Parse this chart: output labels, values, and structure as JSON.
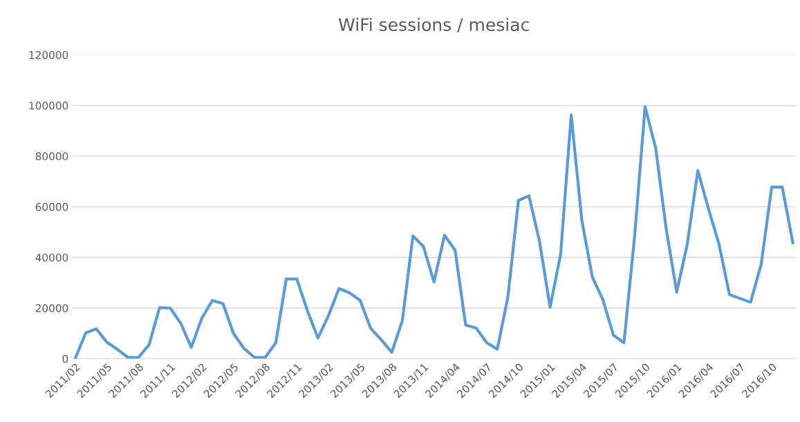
{
  "chart_data": {
    "type": "line",
    "title": "WiFi sessions / mesiac",
    "categories": [
      "2011/02",
      null,
      null,
      "2011/05",
      null,
      null,
      "2011/08",
      null,
      null,
      "2011/11",
      null,
      null,
      "2012/02",
      null,
      null,
      "2012/05",
      null,
      null,
      "2012/08",
      null,
      null,
      "2012/11",
      null,
      null,
      "2013/02",
      null,
      null,
      "2013/05",
      null,
      null,
      "2013/08",
      null,
      null,
      "2013/11",
      null,
      null,
      "2014/04",
      null,
      null,
      "2014/07",
      null,
      null,
      "2014/10",
      null,
      null,
      "2015/01",
      null,
      null,
      "2015/04",
      null,
      null,
      "2015/07",
      null,
      null,
      "2015/10",
      null,
      null,
      "2016/01",
      null,
      null,
      "2016/04",
      null,
      null,
      "2016/07",
      null,
      null,
      "2016/10",
      null,
      null
    ],
    "series": [
      {
        "color": "#5b9bd5",
        "values": [
          0,
          10200,
          11800,
          6500,
          3700,
          500,
          500,
          5500,
          20200,
          20000,
          14000,
          4500,
          16000,
          23000,
          21800,
          10000,
          4000,
          500,
          500,
          6200,
          31500,
          31500,
          19000,
          8200,
          17000,
          27700,
          26000,
          23000,
          12000,
          7500,
          2500,
          15000,
          48500,
          44300,
          30300,
          48800,
          42800,
          13300,
          12100,
          6300,
          3800,
          24300,
          62500,
          64300,
          46300,
          20300,
          41300,
          96300,
          54800,
          32300,
          23300,
          9300,
          6300,
          48000,
          99500,
          83300,
          51300,
          26300,
          45300,
          74300,
          59300,
          45300,
          25300,
          23800,
          22300,
          37300,
          67800,
          67800,
          45800
        ]
      }
    ],
    "ylim": [
      0,
      120000
    ],
    "yticks": [
      0,
      20000,
      40000,
      60000,
      80000,
      100000,
      120000
    ],
    "grid": "y",
    "legend": false,
    "marker": "none",
    "line_style": "solid"
  }
}
